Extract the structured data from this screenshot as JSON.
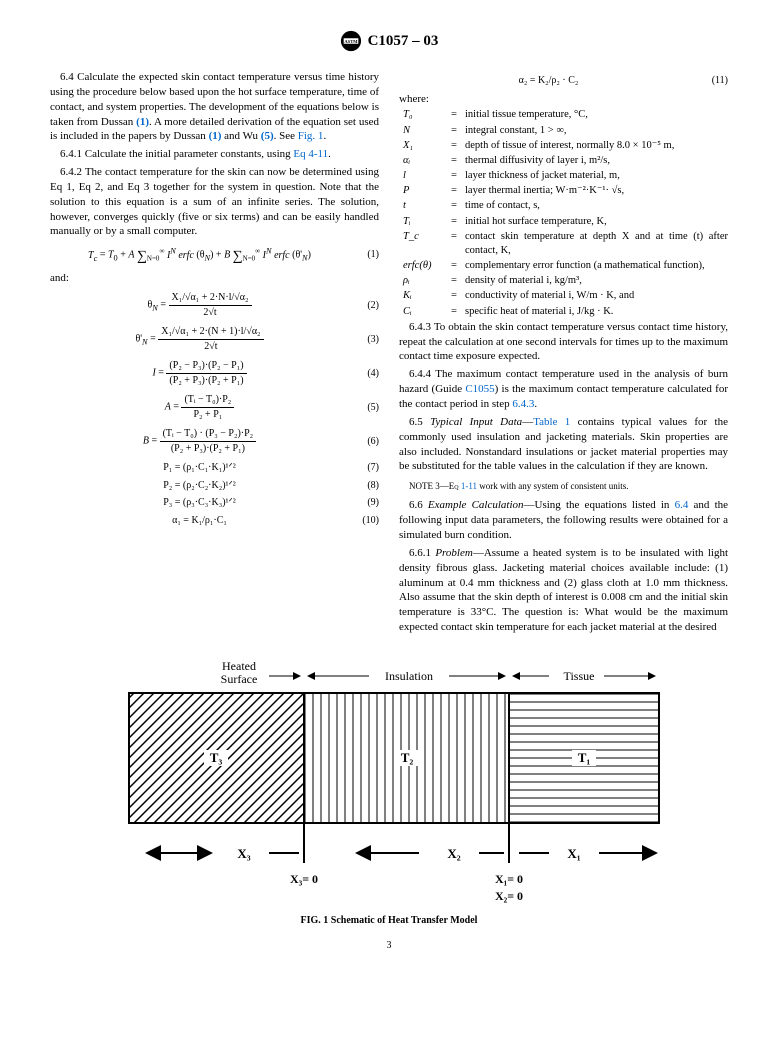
{
  "header": {
    "title": "C1057 – 03"
  },
  "left": {
    "p64": {
      "lead": "6.4 Calculate the expected skin contact temperature versus time history using the procedure below based upon the hot surface temperature, time of contact, and system properties. The development of the equations below is taken from Dussan ",
      "ref1a": "(1)",
      "mid": ". A more detailed derivation of the equation set used is included in the papers by Dussan ",
      "ref1b": "(1)",
      "mid2": " and Wu ",
      "ref5": "(5)",
      "mid3": ". See ",
      "figref": "Fig. 1",
      "end": "."
    },
    "p641": {
      "lead": "6.4.1 Calculate the initial parameter constants, using ",
      "link": "Eq 4-11",
      "end": "."
    },
    "p642": "6.4.2 The contact temperature for the skin can now be determined using Eq 1, Eq 2, and Eq 3 together for the system in question. Note that the solution to this equation is a sum of an infinite series. The solution, however, converges quickly (five or six terms) and can be easily handled manually or by a small computer.",
    "and": "and:",
    "eq": {
      "e1": "T_c = T_0 + A \\u2211 I^N erfc(\\u03b8_N) + B \\u2211 I^N erfc(\\u03b8'_N)",
      "e2num": "X₁/√α₁ + 2·N·l/√α₂",
      "e2den": "2√t",
      "e3num": "X₁/√α₁ + 2·(N + 1)·l/√α₂",
      "e3den": "2√t",
      "e4num": "(P₂ − P₃)·(P₂ − P₁)",
      "e4den": "(P₂ + P₃)·(P₂ + P₁)",
      "e5num": "(Tᵢ − T₀)·P₂",
      "e5den": "P₂ + P₁",
      "e6num": "(Tᵢ − T₀) · (P₃ − P₂)·P₂",
      "e6den": "(P₂ + P₃)·(P₂ + P₁)",
      "e7": "P₁ = (ρ₁·C₁·K₁)¹ᐟ²",
      "e8": "P₂ = (ρ₂·C₂·K₂)¹ᐟ²",
      "e9": "P₃ = (ρ₃·C₃·K₃)¹ᐟ²",
      "e10": "α₁ = K₁/ρ₁·C₁",
      "n1": "(1)",
      "n2": "(2)",
      "n3": "(3)",
      "n4": "(4)",
      "n5": "(5)",
      "n6": "(6)",
      "n7": "(7)",
      "n8": "(8)",
      "n9": "(9)",
      "n10": "(10)"
    }
  },
  "right": {
    "eq11": "α₂ = K₂/ρ₂ · C₂",
    "n11": "(11)",
    "whereLabel": "where:",
    "defs": [
      {
        "sym": "T₀",
        "txt": "initial tissue temperature, °C,"
      },
      {
        "sym": "N",
        "txt": "integral constant, 1 > ∞,"
      },
      {
        "sym": "X₁",
        "txt": "depth of tissue of interest, normally 8.0 × 10⁻⁵ m,"
      },
      {
        "sym": "αᵢ",
        "txt": "thermal diffusivity of layer i, m²/s,"
      },
      {
        "sym": "l",
        "txt": "layer thickness of jacket material, m,"
      },
      {
        "sym": "P",
        "txt": "layer thermal inertia; W·m⁻²·K⁻¹· √s,"
      },
      {
        "sym": "t",
        "txt": "time of contact, s,"
      },
      {
        "sym": "Tᵢ",
        "txt": "initial hot surface temperature, K,"
      },
      {
        "sym": "T_c",
        "txt": "contact skin temperature at depth X and at time (t) after contact, K,"
      },
      {
        "sym": "erfc(θ)",
        "txt": "complementary error function (a mathematical function),"
      },
      {
        "sym": "ρᵢ",
        "txt": "density of material i, kg/m³,"
      },
      {
        "sym": "Kᵢ",
        "txt": "conductivity of material i, W/m · K, and"
      },
      {
        "sym": "Cᵢ",
        "txt": "specific heat of material i, J/kg · K."
      }
    ],
    "p643": {
      "text": "6.4.3 To obtain the skin contact temperature versus contact time history, repeat the calculation at one second intervals for times up to the maximum contact time exposure expected."
    },
    "p644": {
      "lead": "6.4.4 The maximum contact temperature used in the analysis of burn hazard (Guide ",
      "link1": "C1055",
      "mid": ") is the maximum contact temperature calculated for the contact period in step ",
      "link2": "6.4.3",
      "end": "."
    },
    "p65": {
      "lead": "6.5 ",
      "title": "Typical Input Data",
      "dash": "—",
      "link": "Table 1",
      "rest": " contains typical values for the commonly used insulation and jacketing materials. Skin properties are also included. Nonstandard insulations or jacket material properties may be substituted for the table values in the calculation if they are known."
    },
    "note3": {
      "lead": "NOTE 3—Eq ",
      "link": "1-11",
      "rest": " work with any system of consistent units."
    },
    "p66": {
      "lead": "6.6 ",
      "title": "Example Calculation",
      "dash": "—Using the equations listed in ",
      "link": "6.4",
      "rest": " and the following input data parameters, the following results were obtained for a simulated burn condition."
    },
    "p661": {
      "lead": "6.6.1 ",
      "title": "Problem",
      "rest": "—Assume a heated system is to be insulated with light density fibrous glass. Jacketing material choices available include: (1) aluminum at 0.4 mm thickness and (2) glass cloth at 1.0 mm thickness. Also assume that the skin depth of interest is 0.008 cm and the initial skin temperature is 33°C. The question is: What would be the maximum expected contact skin temperature for each jacket material at the desired"
    }
  },
  "figure": {
    "labels": {
      "heated": "Heated\nSurface",
      "insulation": "Insulation",
      "tissue": "Tissue",
      "T3": "T₃",
      "T2": "T₂",
      "T1": "T₁",
      "X3": "X₃",
      "X2": "X₂",
      "X1": "X₁",
      "X3eq": "X₃= 0",
      "X1eq": "X₁= 0",
      "X2eq": "X₂= 0"
    },
    "caption": "FIG. 1 Schematic of Heat Transfer Model",
    "colors": {
      "line": "#000000",
      "bg": "#ffffff"
    }
  },
  "pagenum": "3"
}
